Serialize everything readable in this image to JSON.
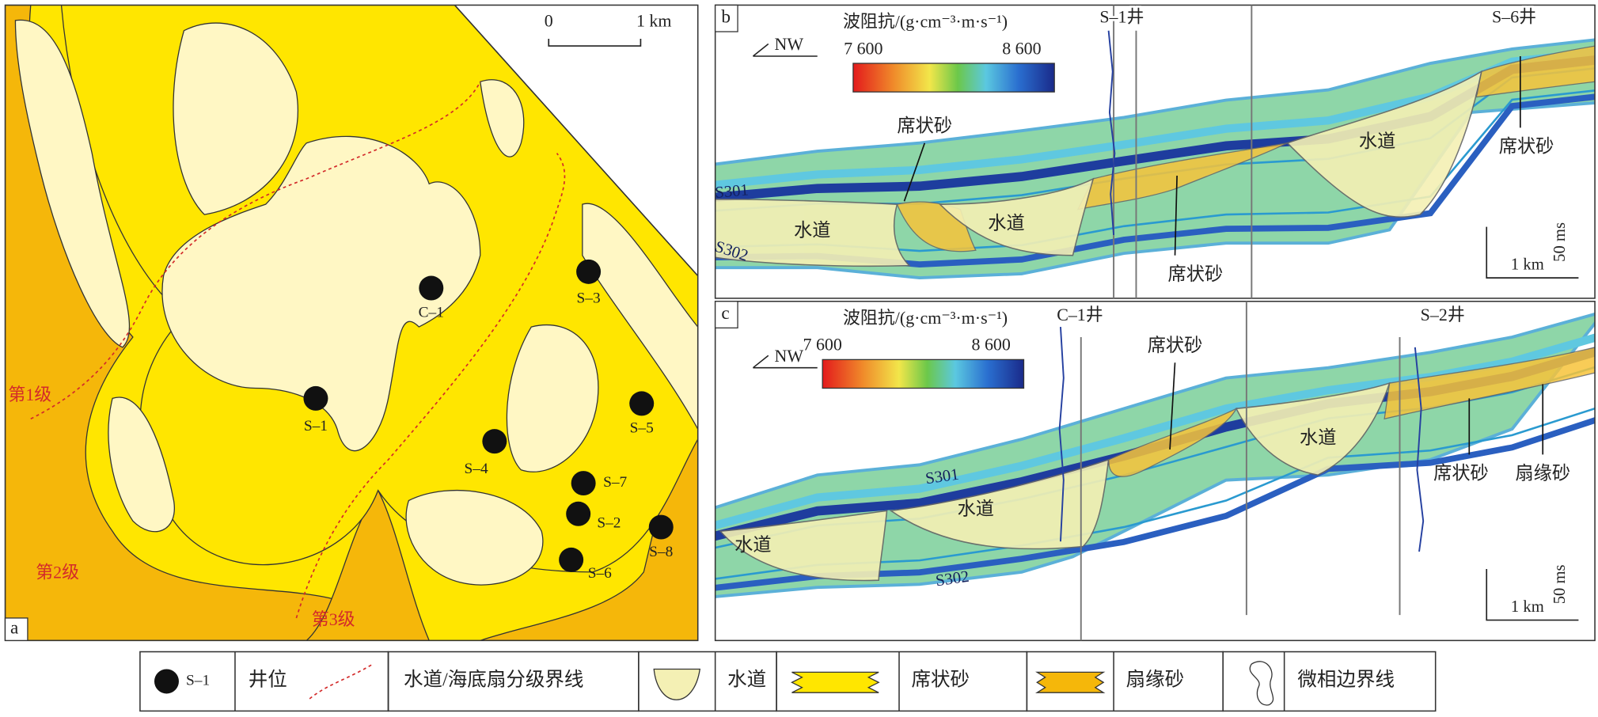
{
  "panel_a": {
    "label": "a",
    "scale_bar": {
      "start": "0",
      "end": "1 km"
    },
    "wells": [
      {
        "label": "C–1"
      },
      {
        "label": "S–3"
      },
      {
        "label": "S–1"
      },
      {
        "label": "S–5"
      },
      {
        "label": "S–4"
      },
      {
        "label": "S–7"
      },
      {
        "label": "S–2"
      },
      {
        "label": "S–8"
      },
      {
        "label": "S–6"
      }
    ],
    "grade_labels": [
      "第1级",
      "第2级",
      "第3级"
    ]
  },
  "panel_b": {
    "label": "b",
    "direction": "NW",
    "colorbar": {
      "title": "波阻抗/(g·cm⁻³·m·s⁻¹)",
      "min": "7 600",
      "max": "8 600"
    },
    "wells": [
      "S–1井",
      "S–6井"
    ],
    "annotations": [
      "席状砂",
      "水道",
      "水道",
      "席状砂",
      "水道",
      "席状砂"
    ],
    "horizons": [
      "S301",
      "S302"
    ],
    "vertical_scale": "50 ms",
    "horizontal_scale": "1 km"
  },
  "panel_c": {
    "label": "c",
    "direction": "NW",
    "colorbar": {
      "title": "波阻抗/(g·cm⁻³·m·s⁻¹)",
      "min": "7 600",
      "max": "8 600"
    },
    "wells": [
      "C–1井",
      "S–2井"
    ],
    "annotations": [
      "席状砂",
      "水道",
      "水道",
      "水道",
      "席状砂",
      "扇缘砂"
    ],
    "horizons": [
      "S301",
      "S302"
    ],
    "vertical_scale": "50 ms",
    "horizontal_scale": "1 km"
  },
  "legend": [
    {
      "sample": "S–1",
      "label": "井位"
    },
    {
      "label": "水道/海底扇分级界线"
    },
    {
      "label": "水道"
    },
    {
      "label": "席状砂"
    },
    {
      "label": "扇缘砂"
    },
    {
      "label": "微相边界线"
    }
  ]
}
